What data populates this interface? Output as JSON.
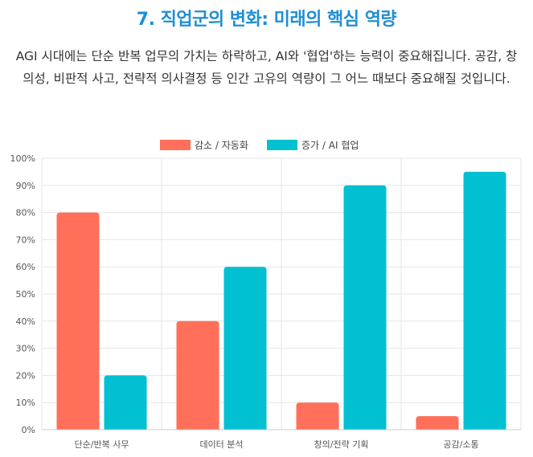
{
  "page": {
    "title": "7. 직업군의 변화: 미래의 핵심 역량",
    "description": "AGI 시대에는 단순 반복 업무의 가치는 하락하고, AI와 '협업'하는 능력이 중요해집니다. 공감, 창의성, 비판적 사고, 전략적 의사결정 등 인간 고유의 역량이 그 어느 때보다 중요해질 것입니다."
  },
  "colors": {
    "title": "#1f8fd4",
    "decrease": "#ff6f59",
    "increase": "#00c0d2",
    "grid": "#e5e5e5"
  },
  "chart_data": {
    "type": "bar",
    "categories": [
      "단순/반복 사무",
      "데이터 분석",
      "창의/전략 기획",
      "공감/소통"
    ],
    "series": [
      {
        "name": "감소 / 자동화",
        "values": [
          80,
          40,
          10,
          5
        ]
      },
      {
        "name": "증가 / AI 협업",
        "values": [
          20,
          60,
          90,
          95
        ]
      }
    ],
    "ylim": [
      0,
      100
    ],
    "yticks": [
      "0%",
      "10%",
      "20%",
      "30%",
      "40%",
      "50%",
      "60%",
      "70%",
      "80%",
      "90%",
      "100%"
    ],
    "legend_position": "top-center",
    "grid": true
  }
}
